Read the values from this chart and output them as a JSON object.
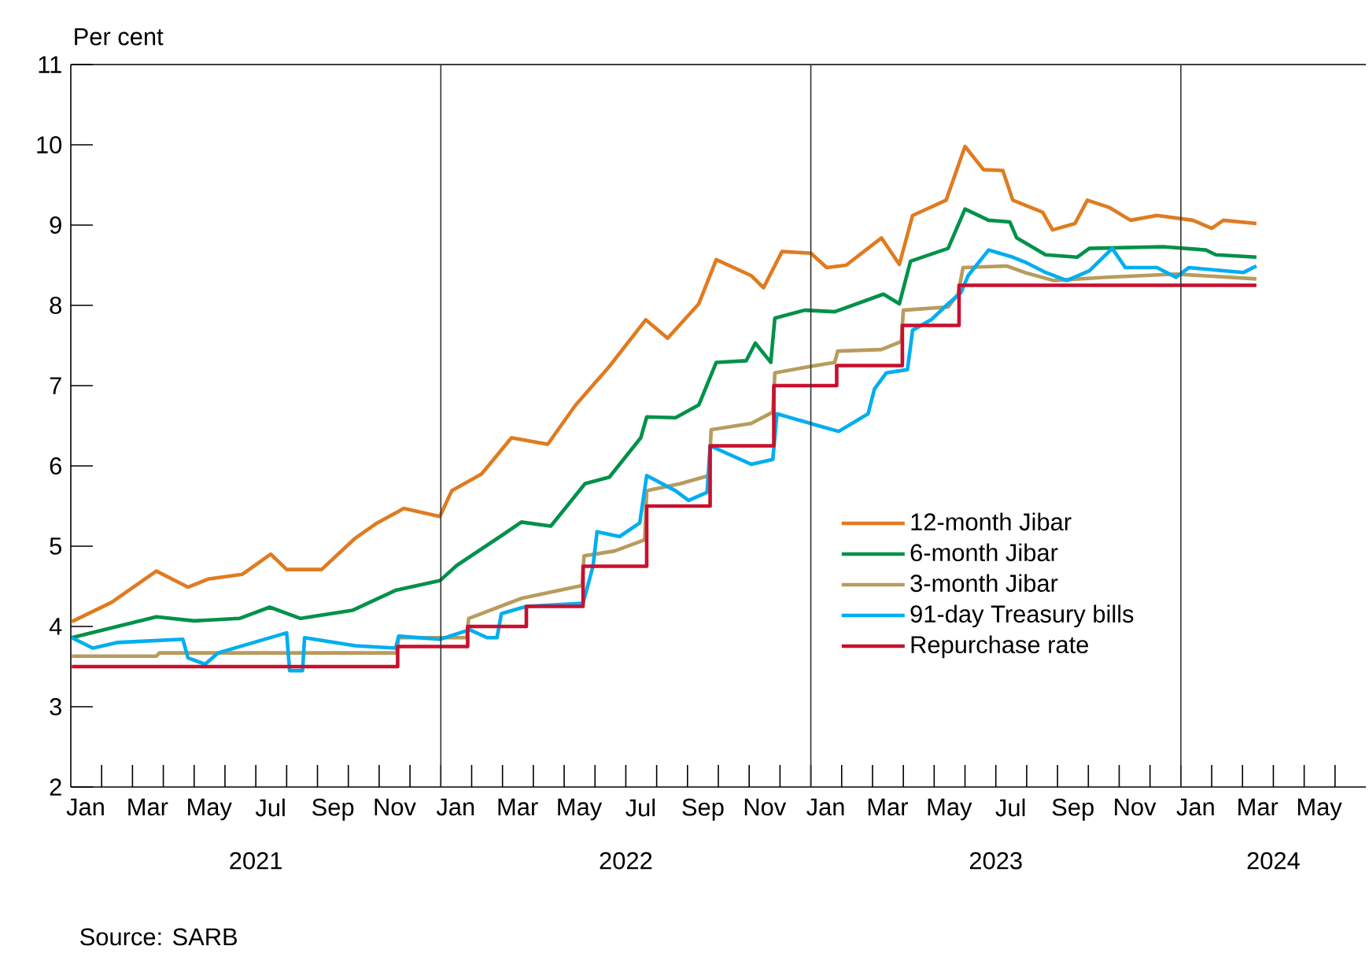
{
  "chart_data": {
    "type": "line",
    "ylabel": "Per cent",
    "xlim": [
      "2021-01-01",
      "2024-07-01"
    ],
    "ylim": [
      2,
      11
    ],
    "yticks": [
      2,
      3,
      4,
      5,
      6,
      7,
      8,
      9,
      10,
      11
    ],
    "legend": "right",
    "xticks": [
      {
        "value": "2021-01-16",
        "label": "Jan"
      },
      {
        "value": "2021-03-16",
        "label": "Mar"
      },
      {
        "value": "2021-05-16",
        "label": "May"
      },
      {
        "value": "2021-07-16",
        "label": "Jul"
      },
      {
        "value": "2021-09-16",
        "label": "Sep"
      },
      {
        "value": "2021-11-16",
        "label": "Nov"
      },
      {
        "value": "2022-01-16",
        "label": "Jan"
      },
      {
        "value": "2022-03-16",
        "label": "Mar"
      },
      {
        "value": "2022-05-16",
        "label": "May"
      },
      {
        "value": "2022-07-16",
        "label": "Jul"
      },
      {
        "value": "2022-09-16",
        "label": "Sep"
      },
      {
        "value": "2022-11-16",
        "label": "Nov"
      },
      {
        "value": "2023-01-16",
        "label": "Jan"
      },
      {
        "value": "2023-03-16",
        "label": "Mar"
      },
      {
        "value": "2023-05-16",
        "label": "May"
      },
      {
        "value": "2023-07-16",
        "label": "Jul"
      },
      {
        "value": "2023-09-16",
        "label": "Sep"
      },
      {
        "value": "2023-11-16",
        "label": "Nov"
      },
      {
        "value": "2024-01-16",
        "label": "Jan"
      },
      {
        "value": "2024-03-16",
        "label": "Mar"
      },
      {
        "value": "2024-05-16",
        "label": "May"
      },
      {
        "value": "2021-02-01",
        "label": null
      },
      {
        "value": "2021-03-01",
        "label": null
      },
      {
        "value": "2021-04-01",
        "label": null
      },
      {
        "value": "2021-05-01",
        "label": null
      },
      {
        "value": "2021-06-01",
        "label": null
      },
      {
        "value": "2021-07-01",
        "label": null
      },
      {
        "value": "2021-08-01",
        "label": null
      },
      {
        "value": "2021-09-01",
        "label": null
      },
      {
        "value": "2021-10-01",
        "label": null
      },
      {
        "value": "2021-11-01",
        "label": null
      },
      {
        "value": "2021-12-01",
        "label": null
      },
      {
        "value": "2022-01-01",
        "label": null
      },
      {
        "value": "2022-02-01",
        "label": null
      },
      {
        "value": "2022-03-01",
        "label": null
      },
      {
        "value": "2022-04-01",
        "label": null
      },
      {
        "value": "2022-05-01",
        "label": null
      },
      {
        "value": "2022-06-01",
        "label": null
      },
      {
        "value": "2022-07-01",
        "label": null
      },
      {
        "value": "2022-08-01",
        "label": null
      },
      {
        "value": "2022-09-01",
        "label": null
      },
      {
        "value": "2022-10-01",
        "label": null
      },
      {
        "value": "2022-11-01",
        "label": null
      },
      {
        "value": "2022-12-01",
        "label": null
      },
      {
        "value": "2023-01-01",
        "label": null
      },
      {
        "value": "2023-02-01",
        "label": null
      },
      {
        "value": "2023-03-01",
        "label": null
      },
      {
        "value": "2023-04-01",
        "label": null
      },
      {
        "value": "2023-05-01",
        "label": null
      },
      {
        "value": "2023-06-01",
        "label": null
      },
      {
        "value": "2023-07-01",
        "label": null
      },
      {
        "value": "2023-08-01",
        "label": null
      },
      {
        "value": "2023-09-01",
        "label": null
      },
      {
        "value": "2023-10-01",
        "label": null
      },
      {
        "value": "2023-11-01",
        "label": null
      },
      {
        "value": "2023-12-01",
        "label": null
      },
      {
        "value": "2024-01-01",
        "label": null
      },
      {
        "value": "2024-02-01",
        "label": null
      },
      {
        "value": "2024-03-01",
        "label": null
      },
      {
        "value": "2024-04-01",
        "label": null
      },
      {
        "value": "2024-05-01",
        "label": null
      },
      {
        "value": "2024-06-01",
        "label": null
      }
    ],
    "ref_lines": [
      {
        "axis": "x",
        "value": "2022-01-01",
        "color": "#333333"
      },
      {
        "axis": "x",
        "value": "2023-01-01",
        "color": "#333333"
      },
      {
        "axis": "x",
        "value": "2024-01-01",
        "color": "#333333"
      }
    ],
    "annotations": [
      "2021",
      "2022",
      "2023",
      "2024",
      "Source: SARB"
    ],
    "series": [
      {
        "name": "12-month Jibar",
        "color": "#e07b20",
        "x": [
          "2021-01-02",
          "2021-02-10",
          "2021-03-25",
          "2021-04-25",
          "2021-05-15",
          "2021-06-18",
          "2021-07-16",
          "2021-08-01",
          "2021-09-05",
          "2021-10-08",
          "2021-10-30",
          "2021-11-25",
          "2021-12-31",
          "2022-01-12",
          "2022-02-10",
          "2022-03-10",
          "2022-04-15",
          "2022-05-12",
          "2022-06-15",
          "2022-07-21",
          "2022-08-12",
          "2022-09-12",
          "2022-09-29",
          "2022-11-03",
          "2022-11-15",
          "2022-12-03",
          "2023-01-01",
          "2023-01-17",
          "2023-02-05",
          "2023-03-10",
          "2023-03-28",
          "2023-04-10",
          "2023-05-13",
          "2023-06-01",
          "2023-06-19",
          "2023-07-08",
          "2023-07-18",
          "2023-08-17",
          "2023-08-27",
          "2023-09-18",
          "2023-09-30",
          "2023-10-22",
          "2023-11-12",
          "2023-12-08",
          "2024-01-13",
          "2024-02-01",
          "2024-02-12",
          "2024-03-15"
        ],
        "values": [
          4.06,
          4.3,
          4.69,
          4.49,
          4.59,
          4.65,
          4.9,
          4.71,
          4.71,
          5.1,
          5.29,
          5.47,
          5.37,
          5.69,
          5.9,
          6.35,
          6.27,
          6.75,
          7.24,
          7.82,
          7.59,
          8.02,
          8.57,
          8.37,
          8.22,
          8.67,
          8.65,
          8.47,
          8.5,
          8.84,
          8.51,
          9.12,
          9.31,
          9.98,
          9.69,
          9.68,
          9.31,
          9.16,
          8.94,
          9.02,
          9.31,
          9.22,
          9.06,
          9.12,
          9.06,
          8.96,
          9.06,
          9.02
        ]
      },
      {
        "name": "6-month Jibar",
        "color": "#00914a",
        "x": [
          "2021-01-02",
          "2021-03-25",
          "2021-05-01",
          "2021-06-15",
          "2021-07-15",
          "2021-08-15",
          "2021-10-05",
          "2021-11-17",
          "2021-12-31",
          "2022-01-17",
          "2022-03-01",
          "2022-03-20",
          "2022-04-18",
          "2022-05-22",
          "2022-06-15",
          "2022-07-16",
          "2022-07-22",
          "2022-08-20",
          "2022-09-12",
          "2022-09-29",
          "2022-10-29",
          "2022-11-07",
          "2022-11-22",
          "2022-11-26",
          "2022-12-26",
          "2023-01-25",
          "2023-03-12",
          "2023-03-28",
          "2023-04-08",
          "2023-05-15",
          "2023-06-01",
          "2023-06-24",
          "2023-07-15",
          "2023-07-22",
          "2023-08-20",
          "2023-09-20",
          "2023-10-02",
          "2023-12-14",
          "2024-01-26",
          "2024-02-05",
          "2024-03-15"
        ],
        "values": [
          3.86,
          4.12,
          4.07,
          4.1,
          4.24,
          4.1,
          4.2,
          4.45,
          4.57,
          4.76,
          5.14,
          5.3,
          5.25,
          5.78,
          5.86,
          6.35,
          6.61,
          6.6,
          6.76,
          7.29,
          7.31,
          7.53,
          7.29,
          7.84,
          7.94,
          7.92,
          8.14,
          8.02,
          8.55,
          8.71,
          9.2,
          9.06,
          9.04,
          8.84,
          8.63,
          8.6,
          8.71,
          8.73,
          8.69,
          8.63,
          8.6
        ]
      },
      {
        "name": "3-month Jibar",
        "color": "#b89b5e",
        "x": [
          "2021-01-02",
          "2021-03-25",
          "2021-03-28",
          "2021-11-18",
          "2021-11-20",
          "2022-01-27",
          "2022-01-29",
          "2022-03-20",
          "2022-05-19",
          "2022-05-21",
          "2022-06-20",
          "2022-07-20",
          "2022-07-22",
          "2022-08-25",
          "2022-09-22",
          "2022-09-24",
          "2022-11-03",
          "2022-11-24",
          "2022-11-26",
          "2023-01-01",
          "2023-01-25",
          "2023-01-28",
          "2023-03-10",
          "2023-03-30",
          "2023-04-01",
          "2023-05-15",
          "2023-05-25",
          "2023-05-30",
          "2023-07-12",
          "2023-07-30",
          "2023-08-28",
          "2023-10-20",
          "2023-12-27",
          "2024-03-15"
        ],
        "values": [
          3.63,
          3.63,
          3.67,
          3.67,
          3.86,
          3.86,
          4.1,
          4.35,
          4.51,
          4.88,
          4.94,
          5.08,
          5.69,
          5.78,
          5.88,
          6.45,
          6.53,
          6.67,
          7.16,
          7.24,
          7.29,
          7.43,
          7.45,
          7.55,
          7.94,
          7.98,
          8.14,
          8.47,
          8.49,
          8.41,
          8.31,
          8.35,
          8.39,
          8.33
        ]
      },
      {
        "name": "91-day Treasury bills",
        "color": "#00aeef",
        "x": [
          "2021-01-02",
          "2021-01-23",
          "2021-02-15",
          "2021-04-20",
          "2021-04-25",
          "2021-05-12",
          "2021-05-25",
          "2021-08-01",
          "2021-08-04",
          "2021-08-17",
          "2021-08-19",
          "2021-10-08",
          "2021-11-17",
          "2021-11-20",
          "2021-12-31",
          "2022-01-30",
          "2022-02-15",
          "2022-02-24",
          "2022-02-28",
          "2022-03-25",
          "2022-05-20",
          "2022-05-30",
          "2022-06-03",
          "2022-06-25",
          "2022-07-15",
          "2022-07-22",
          "2022-08-20",
          "2022-09-02",
          "2022-09-20",
          "2022-09-23",
          "2022-11-03",
          "2022-11-24",
          "2022-11-28",
          "2023-01-06",
          "2023-01-29",
          "2023-02-25",
          "2023-03-03",
          "2023-03-15",
          "2023-04-05",
          "2023-04-10",
          "2023-04-28",
          "2023-05-15",
          "2023-05-28",
          "2023-06-04",
          "2023-06-24",
          "2023-07-18",
          "2023-08-01",
          "2023-08-20",
          "2023-09-10",
          "2023-10-02",
          "2023-10-25",
          "2023-11-07",
          "2023-12-08",
          "2023-12-27",
          "2024-01-09",
          "2024-03-02",
          "2024-03-15"
        ],
        "values": [
          3.86,
          3.73,
          3.8,
          3.84,
          3.61,
          3.53,
          3.67,
          3.92,
          3.45,
          3.45,
          3.86,
          3.76,
          3.73,
          3.88,
          3.84,
          3.96,
          3.86,
          3.86,
          4.16,
          4.25,
          4.29,
          4.75,
          5.18,
          5.12,
          5.29,
          5.88,
          5.69,
          5.57,
          5.67,
          6.25,
          6.02,
          6.08,
          6.65,
          6.51,
          6.43,
          6.65,
          6.96,
          7.16,
          7.2,
          7.69,
          7.82,
          8.02,
          8.16,
          8.37,
          8.69,
          8.6,
          8.53,
          8.41,
          8.31,
          8.43,
          8.71,
          8.47,
          8.47,
          8.35,
          8.47,
          8.41,
          8.49
        ]
      },
      {
        "name": "Repurchase rate",
        "color": "#c8102e",
        "type": "step",
        "x": [
          "2021-01-02",
          "2021-11-19",
          "2022-01-28",
          "2022-03-25",
          "2022-05-20",
          "2022-07-22",
          "2022-09-23",
          "2022-11-25",
          "2023-01-27",
          "2023-03-31",
          "2023-05-26",
          "2024-03-15"
        ],
        "values": [
          3.5,
          3.75,
          4.0,
          4.25,
          4.75,
          5.5,
          6.25,
          7.0,
          7.25,
          7.75,
          8.25,
          8.25
        ]
      }
    ]
  }
}
